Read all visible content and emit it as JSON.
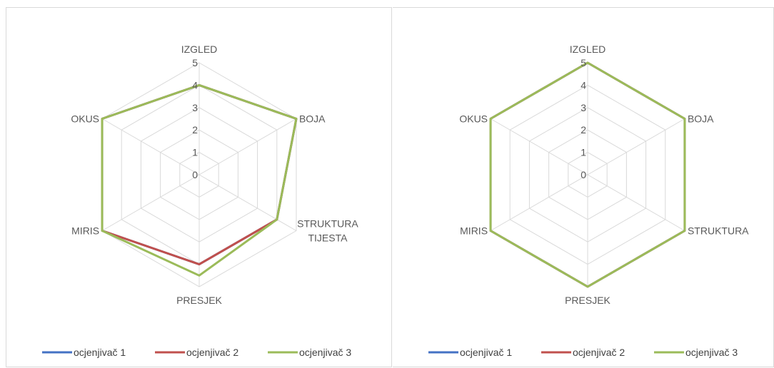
{
  "chart_data": [
    {
      "type": "radar",
      "categories": [
        "IZGLED",
        "BOJA",
        "STRUKTURA TIJESTA",
        "PRESJEK",
        "MIRIS",
        "OKUS"
      ],
      "category_lines": [
        [
          "IZGLED"
        ],
        [
          "BOJA"
        ],
        [
          "STRUKTURA",
          "TIJESTA"
        ],
        [
          "PRESJEK"
        ],
        [
          "MIRIS"
        ],
        [
          "OKUS"
        ]
      ],
      "ticks": [
        "0",
        "1",
        "2",
        "3",
        "4",
        "5"
      ],
      "rlim": [
        0,
        5
      ],
      "grid": true,
      "legend": "bottom",
      "series": [
        {
          "name": "ocjenjivač 1",
          "color": "#4472C4",
          "values": [
            4,
            5,
            4,
            4,
            5,
            5
          ]
        },
        {
          "name": "ocjenjivač 2",
          "color": "#C0504D",
          "values": [
            4,
            5,
            4,
            4,
            5,
            5
          ]
        },
        {
          "name": "ocjenjivač 3",
          "color": "#9BBB59",
          "values": [
            4,
            5,
            4,
            4.5,
            5,
            5
          ]
        }
      ]
    },
    {
      "type": "radar",
      "categories": [
        "IZGLED",
        "BOJA",
        "STRUKTURA",
        "PRESJEK",
        "MIRIS",
        "OKUS"
      ],
      "category_lines": [
        [
          "IZGLED"
        ],
        [
          "BOJA"
        ],
        [
          "STRUKTURA"
        ],
        [
          "PRESJEK"
        ],
        [
          "MIRIS"
        ],
        [
          "OKUS"
        ]
      ],
      "ticks": [
        "0",
        "1",
        "2",
        "3",
        "4",
        "5"
      ],
      "rlim": [
        0,
        5
      ],
      "grid": true,
      "legend": "bottom",
      "series": [
        {
          "name": "ocjenjivač 1",
          "color": "#4472C4",
          "values": [
            5,
            5,
            5,
            5,
            5,
            5
          ]
        },
        {
          "name": "ocjenjivač 2",
          "color": "#C0504D",
          "values": [
            5,
            5,
            5,
            5,
            5,
            5
          ]
        },
        {
          "name": "ocjenjivač 3",
          "color": "#9BBB59",
          "values": [
            5,
            5,
            5,
            5,
            5,
            5
          ]
        }
      ]
    }
  ]
}
